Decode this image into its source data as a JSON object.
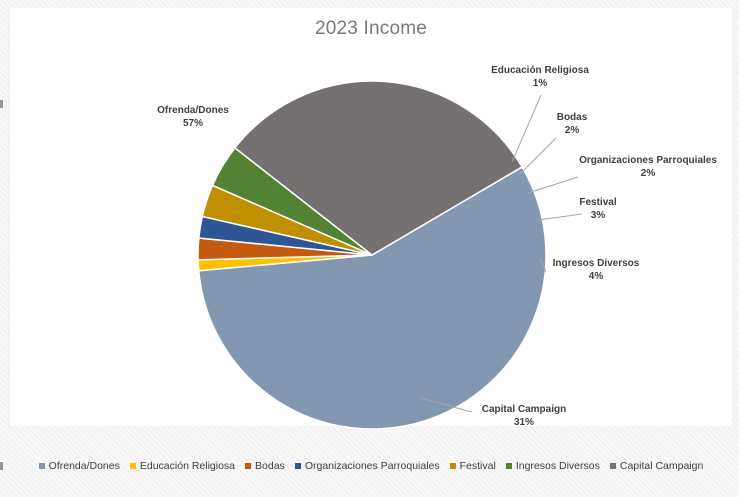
{
  "chart_data": {
    "type": "pie",
    "title": "2023 Income",
    "categories": [
      "Ofrenda/Dones",
      "Educación Religiosa",
      "Bodas",
      "Organizaciones Parroquiales",
      "Festival",
      "Ingresos Diversos",
      "Capital Campaign"
    ],
    "values": [
      57,
      1,
      2,
      2,
      3,
      4,
      31
    ],
    "labels": [
      "57%",
      "1%",
      "2%",
      "2%",
      "3%",
      "4%",
      "31%"
    ],
    "colors": [
      "#8497b0",
      "#ffc000",
      "#c55a11",
      "#2f5597",
      "#bf8f00",
      "#548235",
      "#767171"
    ],
    "legend_position": "bottom"
  }
}
